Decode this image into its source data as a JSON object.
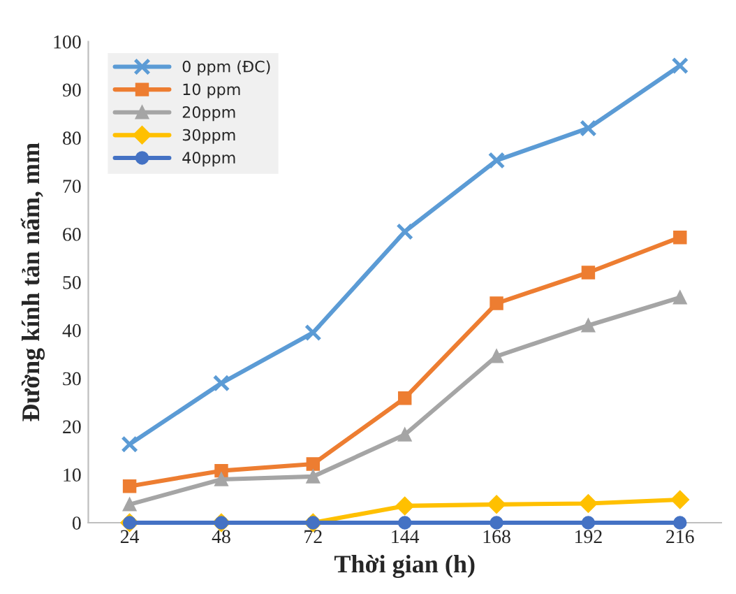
{
  "chart_data": {
    "type": "line",
    "xlabel": "Thời gian (h)",
    "ylabel": "Đường kính tản nấm, mm",
    "categories": [
      "24",
      "48",
      "72",
      "144",
      "168",
      "192",
      "216"
    ],
    "ylim": [
      0,
      100
    ],
    "yticks": [
      0,
      10,
      20,
      30,
      40,
      50,
      60,
      70,
      80,
      90,
      100
    ],
    "grid": false,
    "legend": "top left",
    "line_style": "solid",
    "series": [
      {
        "name": "0 ppm (ĐC)",
        "color": "#5b9bd5",
        "marker": "cross",
        "values": [
          16.3,
          29,
          39.5,
          60.5,
          75.3,
          82,
          95
        ]
      },
      {
        "name": "10 ppm",
        "color": "#ed7d31",
        "marker": "square",
        "values": [
          7.6,
          10.8,
          12.2,
          25.9,
          45.6,
          52,
          59.3
        ]
      },
      {
        "name": "20ppm",
        "color": "#a5a5a5",
        "marker": "triangle",
        "values": [
          3.8,
          9,
          9.6,
          18.3,
          34.6,
          41,
          46.8
        ]
      },
      {
        "name": "30ppm",
        "color": "#ffc000",
        "marker": "diamond",
        "values": [
          0,
          0,
          0,
          3.5,
          3.8,
          4,
          4.8
        ]
      },
      {
        "name": "40ppm",
        "color": "#4472c4",
        "marker": "circle",
        "values": [
          0,
          0,
          0,
          0,
          0,
          0,
          0
        ]
      }
    ]
  }
}
